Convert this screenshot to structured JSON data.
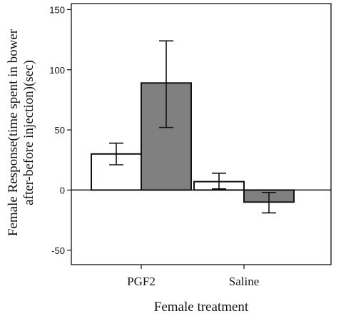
{
  "chart_data": {
    "type": "bar",
    "categories": [
      "PGF2",
      "Saline"
    ],
    "series": [
      {
        "values": [
          30,
          7
        ],
        "errors": [
          [
            21,
            39
          ],
          [
            1,
            14
          ]
        ],
        "color": "#ffffff"
      },
      {
        "values": [
          89,
          -10
        ],
        "errors": [
          [
            52,
            124
          ],
          [
            -19,
            -2
          ]
        ],
        "color": "#808080"
      }
    ],
    "xlabel": "Female treatment",
    "ylabel_lines": [
      "Female Response(time spent in bower",
      "after-before injection)(sec)"
    ],
    "ylim": [
      -62,
      155
    ],
    "yticks": [
      -50,
      0,
      50,
      100,
      150
    ],
    "grid": false,
    "zero_line": true
  }
}
